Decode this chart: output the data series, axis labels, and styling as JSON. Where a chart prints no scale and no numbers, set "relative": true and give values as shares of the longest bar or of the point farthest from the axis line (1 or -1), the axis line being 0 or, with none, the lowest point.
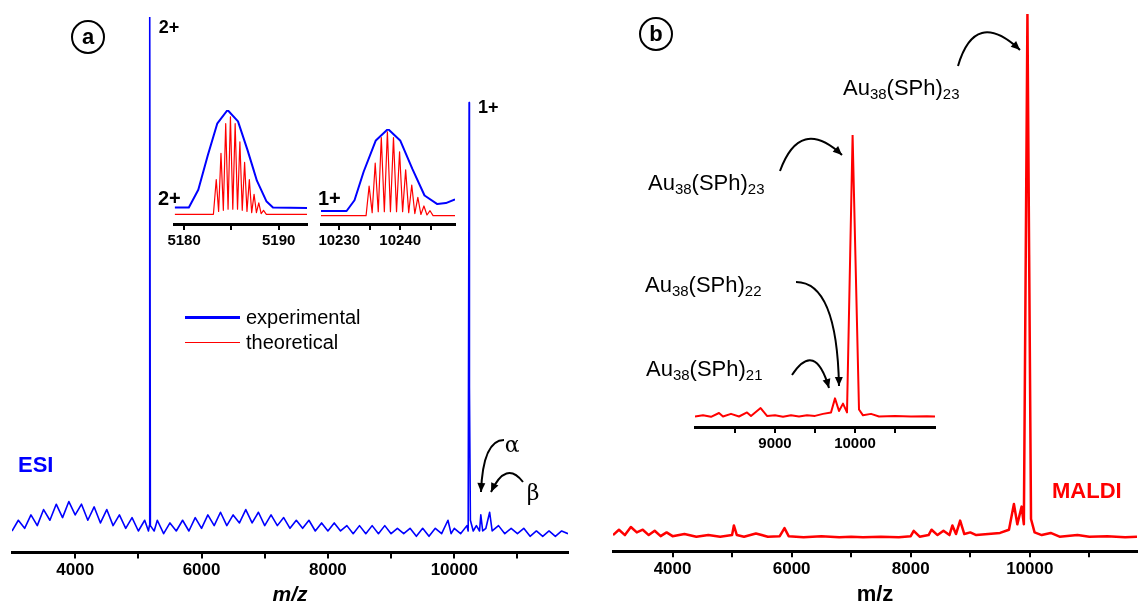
{
  "chart_data": [
    {
      "type": "line",
      "relative": true,
      "xlabel": "m/z",
      "xlim": [
        3000,
        11800
      ],
      "xticks": [
        4000,
        {
          "value": 5000,
          "label": null
        },
        6000,
        {
          "value": 7000,
          "label": null
        },
        8000,
        {
          "value": 9000,
          "label": null
        },
        10000,
        {
          "value": 11000,
          "label": null
        }
      ],
      "x": [
        3000,
        3100,
        3200,
        3300,
        3400,
        3500,
        3600,
        3700,
        3800,
        3900,
        4000,
        4100,
        4200,
        4300,
        4400,
        4500,
        4600,
        4700,
        4800,
        4900,
        5000,
        5100,
        5160,
        5175,
        5180,
        5190,
        5250,
        5300,
        5400,
        5500,
        5600,
        5700,
        5800,
        5900,
        6000,
        6100,
        6200,
        6300,
        6400,
        6500,
        6600,
        6700,
        6800,
        6900,
        7000,
        7100,
        7200,
        7300,
        7400,
        7500,
        7600,
        7700,
        7800,
        7900,
        8000,
        8100,
        8200,
        8300,
        8400,
        8500,
        8600,
        8700,
        8800,
        8900,
        9000,
        9100,
        9200,
        9300,
        9400,
        9500,
        9600,
        9700,
        9800,
        9900,
        9950,
        10000,
        10100,
        10200,
        10220,
        10235,
        10240,
        10255,
        10300,
        10350,
        10400,
        10420,
        10450,
        10500,
        10560,
        10600,
        10700,
        10800,
        10900,
        11000,
        11100,
        11200,
        11300,
        11400,
        11500,
        11600,
        11700,
        11800
      ],
      "series": [
        {
          "color": "#0000ff",
          "values": [
            0.04,
            0.06,
            0.045,
            0.07,
            0.05,
            0.08,
            0.06,
            0.09,
            0.065,
            0.095,
            0.07,
            0.09,
            0.06,
            0.085,
            0.055,
            0.08,
            0.05,
            0.07,
            0.045,
            0.065,
            0.04,
            0.06,
            0.04,
            0.05,
            1,
            0.05,
            0.04,
            0.06,
            0.035,
            0.055,
            0.04,
            0.06,
            0.04,
            0.065,
            0.045,
            0.07,
            0.05,
            0.075,
            0.05,
            0.07,
            0.055,
            0.08,
            0.055,
            0.075,
            0.05,
            0.07,
            0.05,
            0.065,
            0.045,
            0.06,
            0.045,
            0.06,
            0.04,
            0.055,
            0.04,
            0.055,
            0.04,
            0.05,
            0.035,
            0.05,
            0.035,
            0.05,
            0.035,
            0.05,
            0.035,
            0.045,
            0.035,
            0.045,
            0.03,
            0.045,
            0.03,
            0.045,
            0.035,
            0.06,
            0.035,
            0.045,
            0.035,
            0.05,
            0.04,
            0.84,
            0.31,
            0.06,
            0.04,
            0.05,
            0.04,
            0.07,
            0.04,
            0.045,
            0.075,
            0.04,
            0.05,
            0.035,
            0.045,
            0.035,
            0.045,
            0.03,
            0.04,
            0.03,
            0.04,
            0.03,
            0.04,
            0.035
          ]
        }
      ],
      "annotations": [
        "a",
        {
          "text": "2+",
          "x": 5180,
          "y": 1
        },
        {
          "text": "1+",
          "x": 10235,
          "y": 0.84
        },
        "ESI",
        {
          "text": "α",
          "x": 10420,
          "y": 0.07
        },
        {
          "text": "β",
          "x": 10560,
          "y": 0.075
        }
      ]
    },
    {
      "type": "line",
      "relative": true,
      "xlim": [
        5179,
        5193
      ],
      "xticks": [
        5180,
        {
          "value": 5185,
          "label": null
        },
        5190
      ],
      "legend": "bottom",
      "series": [
        {
          "name": "experimental",
          "color": "#0000ff",
          "x": [
            5179,
            5180.5,
            5181.5,
            5182.5,
            5183.5,
            5184.6,
            5185.7,
            5186.7,
            5187.7,
            5188.7,
            5189.4,
            5193
          ],
          "values": [
            0.145,
            0.145,
            0.3,
            0.6,
            0.88,
            1,
            0.9,
            0.65,
            0.38,
            0.2,
            0.145,
            0.14
          ]
        },
        {
          "name": "theoretical",
          "color": "#ff0000",
          "x": [
            5179,
            5183.1,
            5183.4,
            5183.65,
            5183.9,
            5184.15,
            5184.4,
            5184.65,
            5184.9,
            5185.15,
            5185.4,
            5185.65,
            5185.9,
            5186.15,
            5186.4,
            5186.65,
            5186.9,
            5187.15,
            5187.4,
            5187.65,
            5187.9,
            5188.15,
            5188.4,
            5188.7,
            5193
          ],
          "values": [
            0.085,
            0.085,
            0.39,
            0.11,
            0.62,
            0.12,
            0.88,
            0.13,
            0.94,
            0.13,
            0.88,
            0.13,
            0.72,
            0.12,
            0.54,
            0.11,
            0.39,
            0.1,
            0.26,
            0.1,
            0.185,
            0.09,
            0.12,
            0.085,
            0.085
          ]
        }
      ],
      "annotations": [
        "2+"
      ]
    },
    {
      "type": "line",
      "relative": true,
      "xlim": [
        10227,
        10249
      ],
      "xticks": [
        10230,
        {
          "value": 10235,
          "label": null
        },
        10240,
        {
          "value": 10245,
          "label": null
        }
      ],
      "series": [
        {
          "color": "#0000ff",
          "x": [
            10227,
            10231.2,
            10232.5,
            10234,
            10236,
            10238,
            10240,
            10242,
            10244,
            10246.1,
            10247.5,
            10249
          ],
          "values": [
            0.137,
            0.137,
            0.25,
            0.55,
            0.88,
            1,
            0.88,
            0.58,
            0.3,
            0.21,
            0.22,
            0.26
          ]
        },
        {
          "color": "#ff0000",
          "x": [
            10227,
            10234.4,
            10234.9,
            10235.4,
            10235.9,
            10236.4,
            10236.9,
            10237.4,
            10237.9,
            10238.4,
            10238.9,
            10239.4,
            10239.9,
            10240.4,
            10240.9,
            10241.4,
            10241.9,
            10242.4,
            10242.9,
            10243.4,
            10243.9,
            10244.4,
            10244.9,
            10245.4,
            10249
          ],
          "values": [
            0.088,
            0.088,
            0.4,
            0.12,
            0.64,
            0.13,
            0.91,
            0.13,
            0.97,
            0.13,
            0.91,
            0.13,
            0.76,
            0.13,
            0.57,
            0.12,
            0.41,
            0.11,
            0.28,
            0.1,
            0.19,
            0.095,
            0.14,
            0.088,
            0.088
          ]
        }
      ],
      "annotations": [
        "1+"
      ]
    },
    {
      "type": "line",
      "relative": true,
      "xlabel": "m/z",
      "xlim": [
        3000,
        11800
      ],
      "xticks": [
        4000,
        {
          "value": 5000,
          "label": null
        },
        6000,
        {
          "value": 7000,
          "label": null
        },
        8000,
        {
          "value": 9000,
          "label": null
        },
        10000,
        {
          "value": 11000,
          "label": null
        }
      ],
      "x": [
        3000,
        3100,
        3200,
        3300,
        3400,
        3500,
        3600,
        3700,
        3800,
        3900,
        4000,
        4200,
        4400,
        4600,
        4800,
        5000,
        5030,
        5080,
        5200,
        5400,
        5600,
        5800,
        5880,
        5950,
        6200,
        6500,
        6800,
        7000,
        7200,
        7500,
        7800,
        8000,
        8050,
        8150,
        8300,
        8350,
        8450,
        8550,
        8650,
        8700,
        8760,
        8830,
        8900,
        9000,
        9100,
        9300,
        9500,
        9650,
        9733,
        9790,
        9862,
        9900,
        9960,
        10020,
        10080,
        10200,
        10350,
        10500,
        10800,
        11000,
        11300,
        11600,
        11800
      ],
      "series": [
        {
          "color": "#ff0000",
          "values": [
            0.03,
            0.04,
            0.03,
            0.045,
            0.035,
            0.04,
            0.03,
            0.038,
            0.028,
            0.035,
            0.028,
            0.032,
            0.027,
            0.03,
            0.027,
            0.03,
            0.048,
            0.03,
            0.027,
            0.033,
            0.027,
            0.028,
            0.043,
            0.028,
            0.026,
            0.028,
            0.026,
            0.027,
            0.026,
            0.027,
            0.026,
            0.028,
            0.038,
            0.027,
            0.03,
            0.04,
            0.03,
            0.038,
            0.03,
            0.048,
            0.032,
            0.057,
            0.032,
            0.035,
            0.03,
            0.032,
            0.034,
            0.04,
            0.088,
            0.05,
            0.083,
            0.05,
            1,
            0.06,
            0.035,
            0.03,
            0.034,
            0.027,
            0.03,
            0.027,
            0.028,
            0.026,
            0.027
          ]
        }
      ],
      "annotations": [
        "b",
        "Au$_{38}$(SPh)$_{23}$",
        "MALDI"
      ]
    },
    {
      "type": "line",
      "relative": true,
      "xlim": [
        8000,
        11000
      ],
      "xticks": [
        {
          "value": 8500,
          "label": null
        },
        9000,
        {
          "value": 9500,
          "label": null
        },
        10000,
        {
          "value": 10500,
          "label": null
        }
      ],
      "x": [
        8000,
        8100,
        8200,
        8300,
        8350,
        8450,
        8550,
        8650,
        8700,
        8820,
        8900,
        9000,
        9100,
        9200,
        9300,
        9400,
        9500,
        9600,
        9700,
        9750,
        9800,
        9850,
        9900,
        9970,
        10050,
        10100,
        10200,
        10300,
        10500,
        10700,
        10900,
        11000
      ],
      "series": [
        {
          "color": "#ff0000",
          "values": [
            0.036,
            0.04,
            0.035,
            0.048,
            0.036,
            0.045,
            0.036,
            0.05,
            0.038,
            0.065,
            0.038,
            0.04,
            0.035,
            0.04,
            0.036,
            0.04,
            0.038,
            0.045,
            0.05,
            0.098,
            0.055,
            0.08,
            0.05,
            1,
            0.06,
            0.04,
            0.045,
            0.036,
            0.038,
            0.036,
            0.037,
            0.036
          ]
        }
      ],
      "annotations": [
        "Au$_{38}$(SPh)$_{23}$",
        "Au$_{38}$(SPh)$_{22}$",
        "Au$_{38}$(SPh)$_{21}$"
      ]
    }
  ]
}
